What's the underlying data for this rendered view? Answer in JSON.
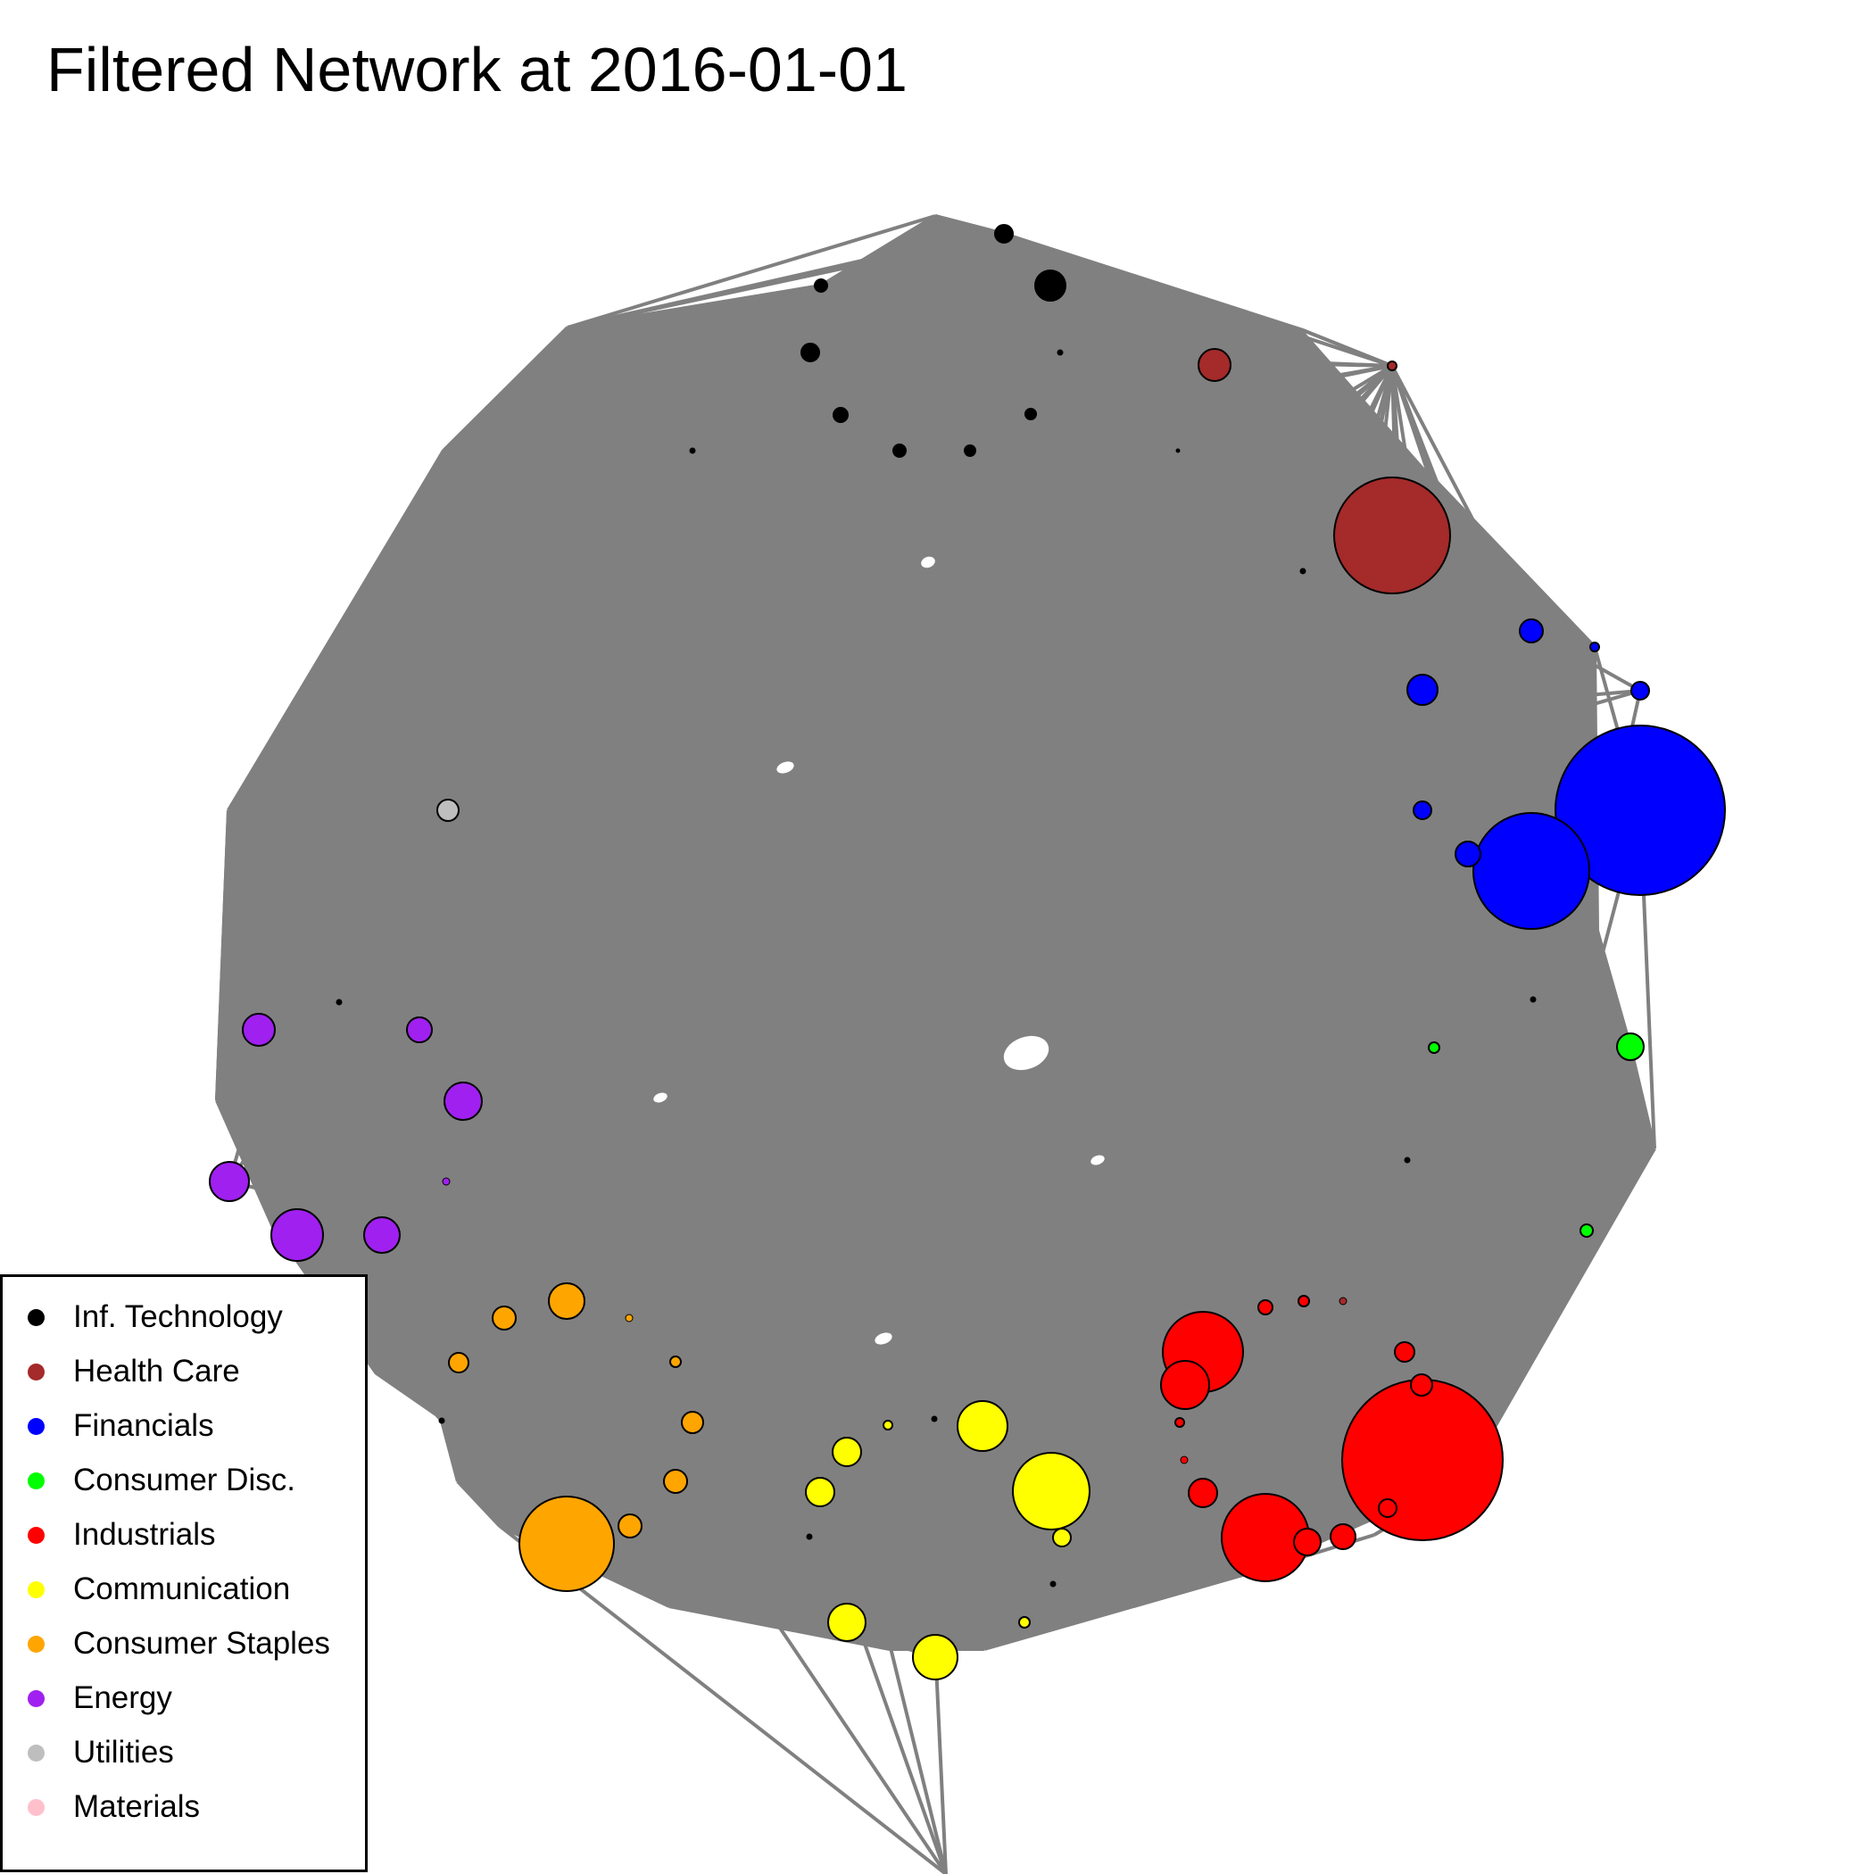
{
  "title": "Filtered Network at 2016-01-01",
  "edge_color": "#808080",
  "legend": [
    {
      "label": "Inf. Technology",
      "color": "#000000"
    },
    {
      "label": "Health Care",
      "color": "#a52a2a"
    },
    {
      "label": "Financials",
      "color": "#0000ff"
    },
    {
      "label": "Consumer Disc.",
      "color": "#00ff00"
    },
    {
      "label": "Industrials",
      "color": "#ff0000"
    },
    {
      "label": "Communication",
      "color": "#ffff00"
    },
    {
      "label": "Consumer Staples",
      "color": "#ffa500"
    },
    {
      "label": "Energy",
      "color": "#a020f0"
    },
    {
      "label": "Utilities",
      "color": "#bebebe"
    },
    {
      "label": "Materials",
      "color": "#ffc0cb"
    }
  ]
}
